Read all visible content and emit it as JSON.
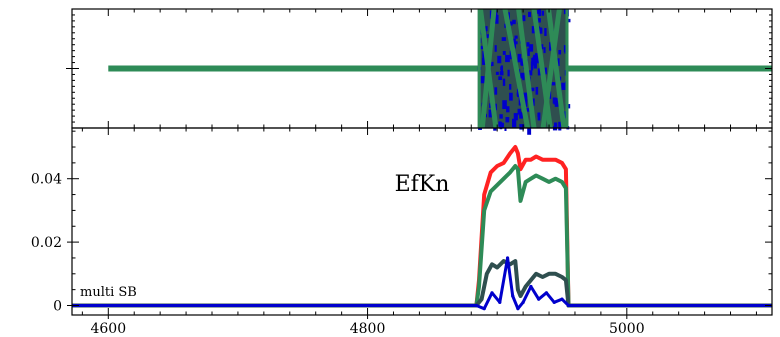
{
  "chart_data": [
    {
      "panel": "top",
      "type": "line",
      "title": "",
      "xlabel": "",
      "ylabel": "",
      "xlim": [
        4572,
        5112
      ],
      "ylim": [
        -1,
        1
      ],
      "x_ticks": [
        4600,
        4800,
        5000
      ],
      "y_ticks": [
        0
      ],
      "y_tick_labels": [],
      "x_tick_labels": [],
      "baseline": 0,
      "active_band": [
        4885,
        4955
      ],
      "series": [
        {
          "name": "",
          "color": "#0000cc"
        },
        {
          "name": "",
          "color": "#2f4f4f"
        },
        {
          "name": "",
          "color": "#2e8b57"
        }
      ]
    },
    {
      "panel": "bottom",
      "type": "line",
      "title": "EfKn",
      "annotation": "multi SB",
      "xlabel": "",
      "ylabel": "",
      "xlim": [
        4572,
        5112
      ],
      "ylim": [
        -0.003,
        0.056
      ],
      "x_ticks": [
        4600,
        4800,
        5000
      ],
      "x_tick_labels": [
        "4600",
        "4800",
        "5000"
      ],
      "y_ticks": [
        0,
        0.02,
        0.04
      ],
      "y_tick_labels": [
        "0",
        "0.02",
        "0.04"
      ],
      "series": [
        {
          "name": "",
          "color": "#ff2222",
          "x": [
            4572,
            4884,
            4886,
            4890,
            4895,
            4900,
            4905,
            4910,
            4914,
            4916,
            4918,
            4922,
            4926,
            4930,
            4935,
            4940,
            4945,
            4950,
            4953,
            4955,
            5112
          ],
          "y": [
            0,
            0,
            0.008,
            0.035,
            0.042,
            0.044,
            0.045,
            0.048,
            0.05,
            0.048,
            0.043,
            0.046,
            0.046,
            0.047,
            0.046,
            0.046,
            0.046,
            0.045,
            0.043,
            0,
            0
          ]
        },
        {
          "name": "",
          "color": "#2e8b57",
          "x": [
            4572,
            4884,
            4886,
            4890,
            4895,
            4900,
            4905,
            4910,
            4914,
            4916,
            4918,
            4922,
            4926,
            4930,
            4935,
            4940,
            4945,
            4950,
            4953,
            4955,
            5112
          ],
          "y": [
            0,
            0,
            0.006,
            0.03,
            0.036,
            0.038,
            0.04,
            0.042,
            0.044,
            0.043,
            0.033,
            0.039,
            0.04,
            0.041,
            0.04,
            0.039,
            0.04,
            0.039,
            0.037,
            0,
            0
          ]
        },
        {
          "name": "",
          "color": "#2f4f4f",
          "x": [
            4572,
            4884,
            4888,
            4892,
            4896,
            4900,
            4905,
            4910,
            4914,
            4916,
            4918,
            4922,
            4926,
            4930,
            4935,
            4940,
            4945,
            4950,
            4953,
            4955,
            5112
          ],
          "y": [
            0,
            0,
            0.002,
            0.01,
            0.013,
            0.012,
            0.014,
            0.013,
            0.014,
            0.005,
            0.003,
            0.006,
            0.008,
            0.01,
            0.009,
            0.01,
            0.01,
            0.009,
            0.008,
            0,
            0
          ]
        },
        {
          "name": "",
          "color": "#0000cc",
          "x": [
            4572,
            4884,
            4890,
            4896,
            4902,
            4908,
            4912,
            4916,
            4920,
            4926,
            4932,
            4938,
            4944,
            4950,
            4955,
            5112
          ],
          "y": [
            0,
            0,
            -0.001,
            0.004,
            0.001,
            0.015,
            0.003,
            -0.001,
            0.001,
            0.006,
            0.002,
            0.004,
            0.001,
            0.002,
            0,
            0
          ]
        }
      ]
    }
  ]
}
